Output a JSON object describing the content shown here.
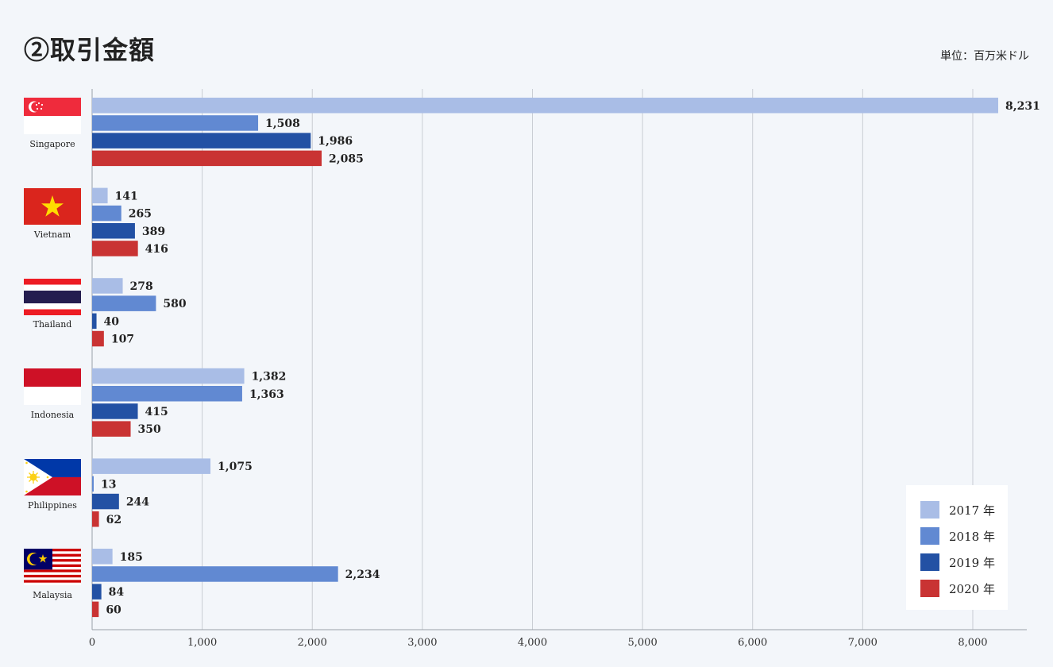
{
  "title": "②取引金額",
  "unit_label": "単位：百万米ドル",
  "colors": {
    "2017": "#a9bde6",
    "2018": "#6189d2",
    "2019": "#2351a4",
    "2020": "#c93333",
    "grid": "#c9cdd3",
    "axis": "#9aa0a8"
  },
  "chart_data": {
    "type": "bar",
    "orientation": "horizontal",
    "title": "②取引金額",
    "unit": "単位：百万米ドル",
    "categories": [
      "Singapore",
      "Vietnam",
      "Thailand",
      "Indonesia",
      "Philippines",
      "Malaysia"
    ],
    "series": [
      {
        "name": "2017 年",
        "values": [
          8231,
          141,
          278,
          1382,
          1075,
          185
        ]
      },
      {
        "name": "2018 年",
        "values": [
          1508,
          265,
          580,
          1363,
          13,
          2234
        ]
      },
      {
        "name": "2019 年",
        "values": [
          1986,
          389,
          40,
          415,
          244,
          84
        ]
      },
      {
        "name": "2020 年",
        "values": [
          2085,
          416,
          107,
          350,
          62,
          60
        ]
      }
    ],
    "value_labels": [
      [
        "8,231",
        "1,508",
        "1,986",
        "2,085"
      ],
      [
        "141",
        "265",
        "389",
        "416"
      ],
      [
        "278",
        "580",
        "40",
        "107"
      ],
      [
        "1,382",
        "1,363",
        "415",
        "350"
      ],
      [
        "1,075",
        "13",
        "244",
        "62"
      ],
      [
        "185",
        "2,234",
        "84",
        "60"
      ]
    ],
    "xlim": [
      0,
      8500
    ],
    "xticks": [
      0,
      1000,
      2000,
      3000,
      4000,
      5000,
      6000,
      7000,
      8000
    ],
    "xtick_labels": [
      "0",
      "1,000",
      "2,000",
      "3,000",
      "4,000",
      "5,000",
      "6,000",
      "7,000",
      "8,000"
    ],
    "grid": true,
    "legend_position": "bottom-right"
  },
  "legend": [
    {
      "label": "2017 年",
      "color": "#a9bde6"
    },
    {
      "label": "2018 年",
      "color": "#6189d2"
    },
    {
      "label": "2019 年",
      "color": "#2351a4"
    },
    {
      "label": "2020 年",
      "color": "#c93333"
    }
  ],
  "countries": [
    {
      "label": "Singapore",
      "flag": "singapore-flag"
    },
    {
      "label": "Vietnam",
      "flag": "vietnam-flag"
    },
    {
      "label": "Thailand",
      "flag": "thailand-flag"
    },
    {
      "label": "Indonesia",
      "flag": "indonesia-flag"
    },
    {
      "label": "Philippines",
      "flag": "philippines-flag"
    },
    {
      "label": "Malaysia",
      "flag": "malaysia-flag"
    }
  ]
}
